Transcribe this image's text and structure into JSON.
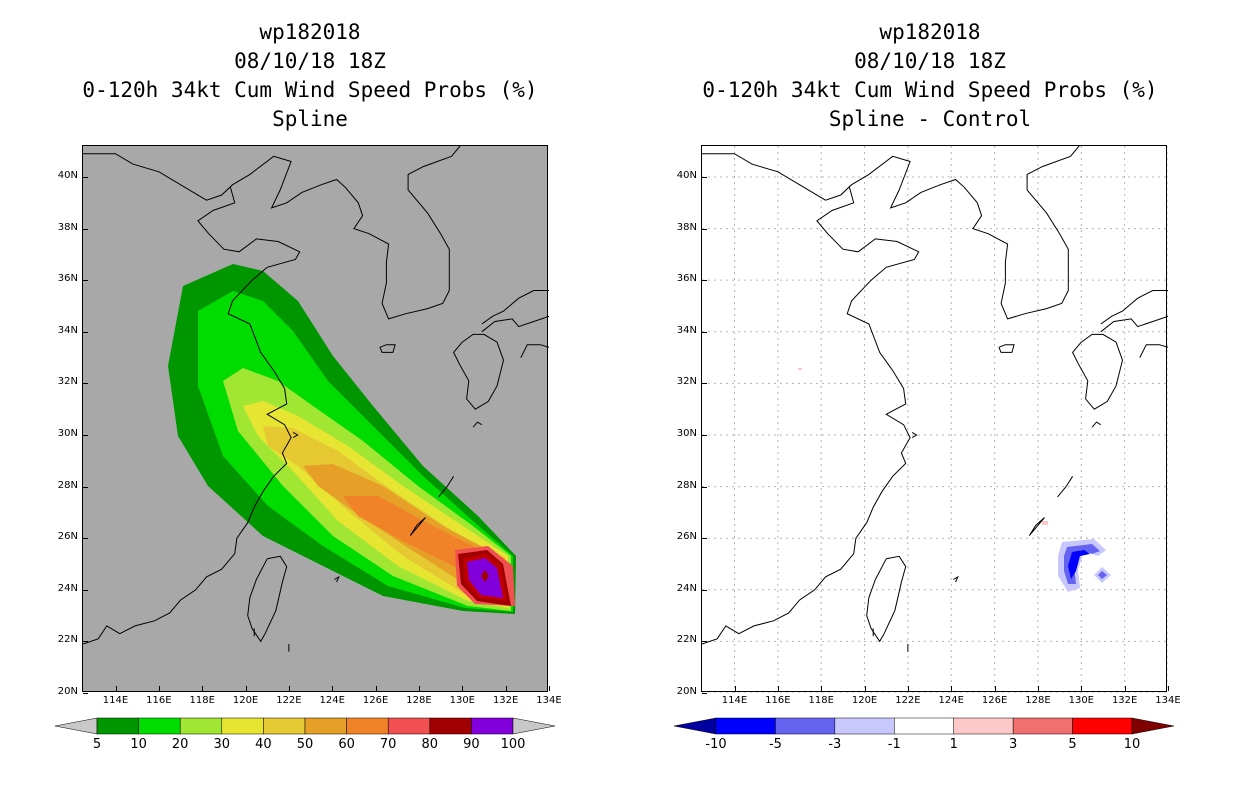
{
  "left": {
    "title_lines": [
      "wp182018",
      "08/10/18 18Z",
      "0-120h 34kt Cum Wind Speed Probs (%)",
      "Spline"
    ]
  },
  "right": {
    "title_lines": [
      "wp182018",
      "08/10/18 18Z",
      "0-120h 34kt Cum Wind Speed Probs (%)",
      "Spline - Control"
    ]
  },
  "axes": {
    "lat_labels": [
      "40N",
      "38N",
      "36N",
      "34N",
      "32N",
      "30N",
      "28N",
      "26N",
      "24N",
      "22N",
      "20N"
    ],
    "lat_values": [
      40,
      38,
      36,
      34,
      32,
      30,
      28,
      26,
      24,
      22,
      20
    ],
    "lon_labels": [
      "114E",
      "116E",
      "118E",
      "120E",
      "122E",
      "124E",
      "126E",
      "128E",
      "130E",
      "132E",
      "134E"
    ],
    "lon_values": [
      114,
      116,
      118,
      120,
      122,
      124,
      126,
      128,
      130,
      132,
      134
    ],
    "lon_range": [
      112.5,
      134
    ],
    "lat_range": [
      20,
      41.2
    ]
  },
  "colorbar_left": {
    "labels": [
      "5",
      "10",
      "20",
      "30",
      "40",
      "50",
      "60",
      "70",
      "80",
      "90",
      "100"
    ],
    "colors": [
      "#009600",
      "#00dc00",
      "#a0e632",
      "#e6e632",
      "#e6c832",
      "#e6a028",
      "#f08228",
      "#f05050",
      "#a00000",
      "#8200dc"
    ],
    "under_color": "#c8c8c8",
    "over_color": "#c8c8c8"
  },
  "colorbar_right": {
    "labels": [
      "-10",
      "-5",
      "-3",
      "-1",
      "1",
      "3",
      "5",
      "10"
    ],
    "colors": [
      "#0000ff",
      "#6464f0",
      "#c8c8ff",
      "#ffffff",
      "#ffc8c8",
      "#f07070",
      "#ff0000"
    ],
    "under_color": "#0000a0",
    "over_color": "#800000"
  },
  "probability_contours": [
    {
      "level": 5,
      "color": "#009600"
    },
    {
      "level": 10,
      "color": "#00dc00"
    },
    {
      "level": 20,
      "color": "#a0e632"
    },
    {
      "level": 30,
      "color": "#e6e632"
    },
    {
      "level": 40,
      "color": "#e6c832"
    },
    {
      "level": 50,
      "color": "#e6a028"
    },
    {
      "level": 60,
      "color": "#f08228"
    },
    {
      "level": 70,
      "color": "#f05050"
    },
    {
      "level": 80,
      "color": "#a00000"
    },
    {
      "level": 90,
      "color": "#c00000"
    },
    {
      "level": 100,
      "color": "#8200dc"
    }
  ]
}
